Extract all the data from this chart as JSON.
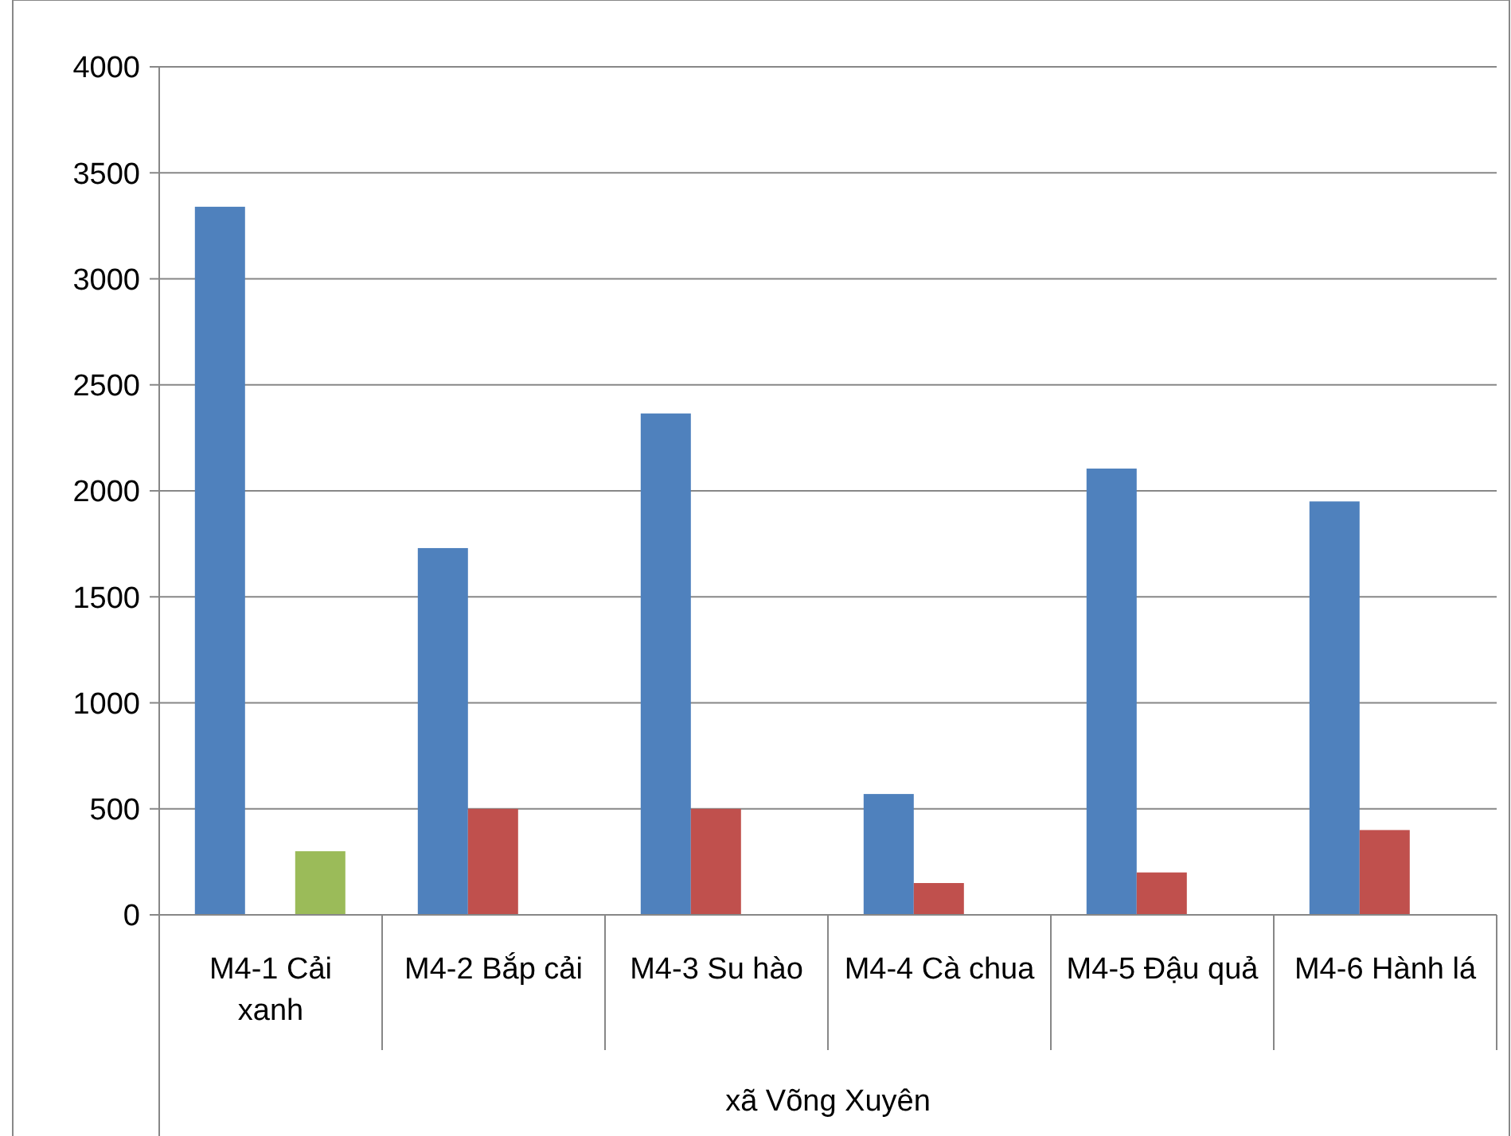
{
  "chart_data": {
    "type": "bar",
    "categories": [
      "M4-1 Cải xanh",
      "M4-2 Bắp cải",
      "M4-3 Su hào",
      "M4-4 Cà chua",
      "M4-5 Đậu quả",
      "M4-6 Hành lá"
    ],
    "xlabel": "xã Võng Xuyên",
    "series": [
      {
        "color": "#4f81bd",
        "values": [
          3340,
          1730,
          2365,
          570,
          2105,
          1950
        ]
      },
      {
        "color": "#c0504d",
        "values": [
          null,
          500,
          500,
          150,
          200,
          400
        ]
      },
      {
        "color": "#9bbb59",
        "values": [
          300,
          null,
          null,
          null,
          null,
          null
        ]
      }
    ],
    "ylim": [
      0,
      4000
    ],
    "yticks": [
      0,
      500,
      1000,
      1500,
      2000,
      2500,
      3000,
      3500,
      4000
    ],
    "grid": "y"
  }
}
